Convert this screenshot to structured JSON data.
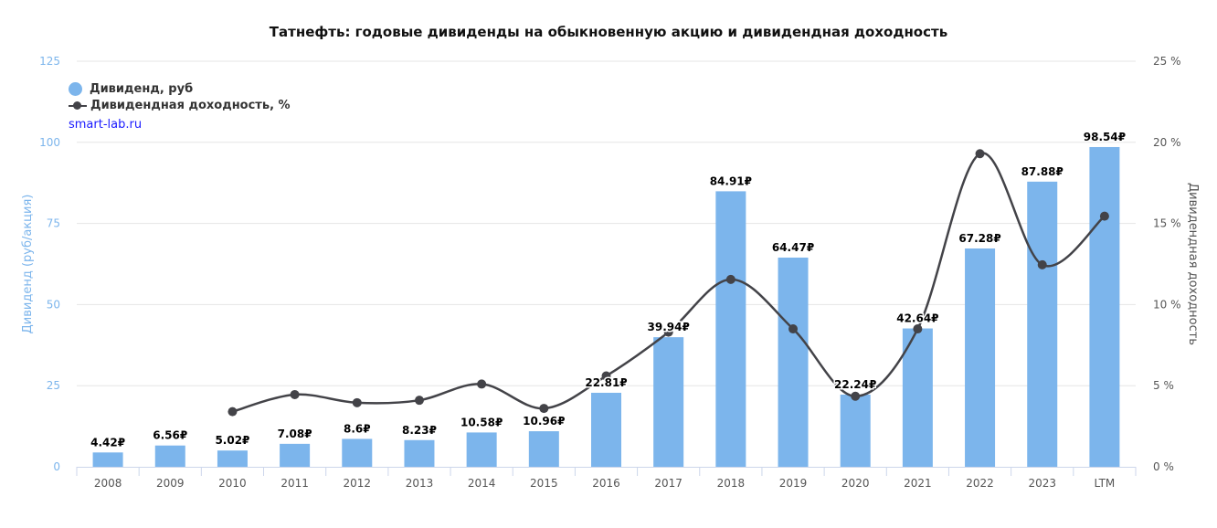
{
  "chart_data": {
    "type": "bar",
    "title": "Татнефть: годовые дивиденды на обыкновенную акцию и дивидендная доходность",
    "categories": [
      "2008",
      "2009",
      "2010",
      "2011",
      "2012",
      "2013",
      "2014",
      "2015",
      "2016",
      "2017",
      "2018",
      "2019",
      "2020",
      "2021",
      "2022",
      "2023",
      "LTM"
    ],
    "series": [
      {
        "name": "Дивиденд, руб",
        "type": "bar",
        "axis": "left",
        "color": "#7cb5ec",
        "values": [
          4.42,
          6.56,
          5.02,
          7.08,
          8.6,
          8.23,
          10.58,
          10.96,
          22.81,
          39.94,
          84.91,
          64.47,
          22.24,
          42.64,
          67.28,
          87.88,
          98.54
        ],
        "labels": [
          "4.42₽",
          "6.56₽",
          "5.02₽",
          "7.08₽",
          "8.6₽",
          "8.23₽",
          "10.58₽",
          "10.96₽",
          "22.81₽",
          "39.94₽",
          "84.91₽",
          "64.47₽",
          "22.24₽",
          "42.64₽",
          "67.28₽",
          "87.88₽",
          "98.54₽"
        ]
      },
      {
        "name": "Дивидендная доходность, %",
        "type": "line",
        "axis": "right",
        "color": "#434348",
        "values": [
          null,
          null,
          3.4,
          4.45,
          3.95,
          4.1,
          5.1,
          3.6,
          5.6,
          8.3,
          11.55,
          8.5,
          4.35,
          8.5,
          19.3,
          12.45,
          15.45
        ]
      }
    ],
    "ylabel": "Дивиденд (руб/акция)",
    "ylim": [
      0,
      125
    ],
    "yticks": [
      "0",
      "25",
      "50",
      "75",
      "100",
      "125"
    ],
    "y2label": "Дивидендная доходность",
    "y2lim": [
      0,
      25
    ],
    "y2ticks": [
      "0 %",
      "5 %",
      "10 %",
      "15 %",
      "20 %",
      "25 %"
    ],
    "grid": true,
    "legend": "top-left",
    "credit": "smart-lab.ru"
  }
}
